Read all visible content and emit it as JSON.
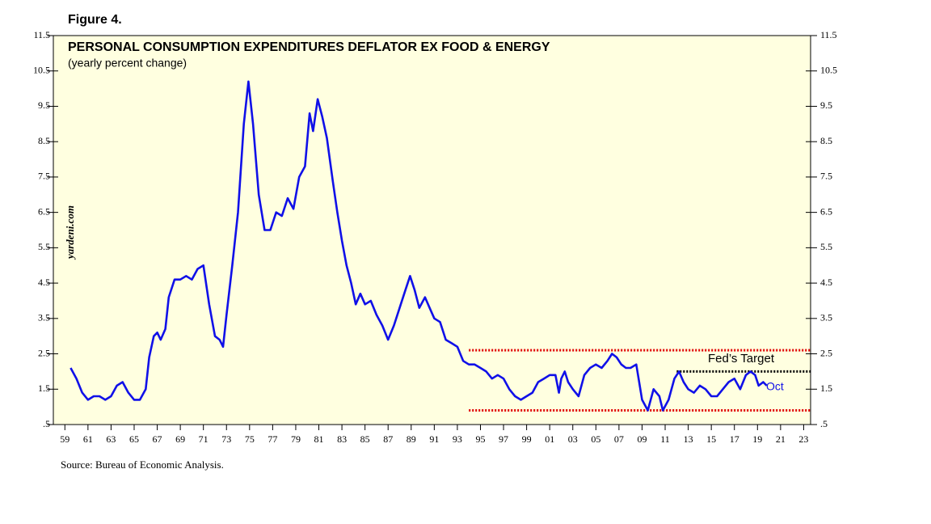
{
  "chart_data": {
    "type": "line",
    "figure_label": "Figure 4.",
    "title": "PERSONAL CONSUMPTION EXPENDITURES DEFLATOR EX FOOD & ENERGY",
    "subtitle": "(yearly percent change)",
    "watermark": "yardeni.com",
    "source": "Source: Bureau of Economic Analysis.",
    "annotations": [
      "Fed’s Target",
      "Oct"
    ],
    "background": "#ffffe0",
    "x": [
      1959.5,
      1960,
      1960.5,
      1961,
      1961.5,
      1962,
      1962.5,
      1963,
      1963.5,
      1964,
      1964.5,
      1965,
      1965.5,
      1966,
      1966.3,
      1966.7,
      1967,
      1967.3,
      1967.7,
      1968,
      1968.5,
      1969,
      1969.5,
      1970,
      1970.5,
      1971,
      1971.5,
      1972,
      1972.4,
      1972.7,
      1973,
      1973.5,
      1974,
      1974.5,
      1974.9,
      1975.3,
      1975.8,
      1976.3,
      1976.8,
      1977.3,
      1977.8,
      1978.3,
      1978.8,
      1979.3,
      1979.8,
      1980.2,
      1980.5,
      1980.9,
      1981.3,
      1981.7,
      1982.2,
      1982.6,
      1983,
      1983.4,
      1983.8,
      1984.2,
      1984.6,
      1985,
      1985.5,
      1986,
      1986.5,
      1987,
      1987.5,
      1988,
      1988.5,
      1988.9,
      1989.3,
      1989.7,
      1990.2,
      1990.6,
      1991,
      1991.5,
      1992,
      1992.5,
      1993,
      1993.5,
      1994,
      1994.5,
      1995,
      1995.5,
      1996,
      1996.5,
      1997,
      1997.5,
      1998,
      1998.5,
      1999,
      1999.5,
      2000,
      2000.5,
      2001,
      2001.5,
      2001.8,
      2002,
      2002.3,
      2002.6,
      2003,
      2003.5,
      2004,
      2004.5,
      2005,
      2005.5,
      2006,
      2006.4,
      2006.8,
      2007.2,
      2007.6,
      2008,
      2008.5,
      2009,
      2009.5,
      2010,
      2010.5,
      2010.8,
      2011.3,
      2011.8,
      2012.2,
      2012.6,
      2013,
      2013.5,
      2014,
      2014.5,
      2015,
      2015.5,
      2016,
      2016.5,
      2017,
      2017.5,
      2018,
      2018.4,
      2018.8,
      2019.1,
      2019.5,
      2019.8
    ],
    "series": [
      {
        "name": "PCE deflator ex food & energy",
        "color": "#1010e8",
        "values": [
          2.1,
          1.8,
          1.4,
          1.2,
          1.3,
          1.3,
          1.2,
          1.3,
          1.6,
          1.7,
          1.4,
          1.2,
          1.2,
          1.5,
          2.4,
          3.0,
          3.1,
          2.9,
          3.2,
          4.1,
          4.6,
          4.6,
          4.7,
          4.6,
          4.9,
          5.0,
          3.9,
          3.0,
          2.9,
          2.7,
          3.6,
          5.0,
          6.5,
          9.0,
          10.2,
          9.0,
          7.0,
          6.0,
          6.0,
          6.5,
          6.4,
          6.9,
          6.6,
          7.5,
          7.8,
          9.3,
          8.8,
          9.7,
          9.2,
          8.6,
          7.4,
          6.5,
          5.7,
          5.0,
          4.5,
          3.9,
          4.2,
          3.9,
          4.0,
          3.6,
          3.3,
          2.9,
          3.3,
          3.8,
          4.3,
          4.7,
          4.3,
          3.8,
          4.1,
          3.8,
          3.5,
          3.4,
          2.9,
          2.8,
          2.7,
          2.3,
          2.2,
          2.2,
          2.1,
          2.0,
          1.8,
          1.9,
          1.8,
          1.5,
          1.3,
          1.2,
          1.3,
          1.4,
          1.7,
          1.8,
          1.9,
          1.9,
          1.4,
          1.8,
          2.0,
          1.7,
          1.5,
          1.3,
          1.9,
          2.1,
          2.2,
          2.1,
          2.3,
          2.5,
          2.4,
          2.2,
          2.1,
          2.1,
          2.2,
          1.2,
          0.9,
          1.5,
          1.3,
          0.9,
          1.2,
          1.8,
          2.0,
          1.7,
          1.5,
          1.4,
          1.6,
          1.5,
          1.3,
          1.3,
          1.5,
          1.7,
          1.8,
          1.5,
          1.9,
          2.0,
          1.9,
          1.6,
          1.7,
          1.6
        ]
      }
    ],
    "reference_lines": [
      {
        "value": 2.6,
        "from": 1994,
        "color": "#e00000"
      },
      {
        "value": 0.9,
        "from": 1994,
        "color": "#e00000"
      },
      {
        "value": 2.0,
        "from": 2012,
        "color": "#000000"
      }
    ],
    "xlim": [
      1958,
      2023.6
    ],
    "xticks": [
      {
        "value": 1959,
        "label": "59"
      },
      {
        "value": 1961,
        "label": "61"
      },
      {
        "value": 1963,
        "label": "63"
      },
      {
        "value": 1965,
        "label": "65"
      },
      {
        "value": 1967,
        "label": "67"
      },
      {
        "value": 1969,
        "label": "69"
      },
      {
        "value": 1971,
        "label": "71"
      },
      {
        "value": 1973,
        "label": "73"
      },
      {
        "value": 1975,
        "label": "75"
      },
      {
        "value": 1977,
        "label": "77"
      },
      {
        "value": 1979,
        "label": "79"
      },
      {
        "value": 1981,
        "label": "81"
      },
      {
        "value": 1983,
        "label": "83"
      },
      {
        "value": 1985,
        "label": "85"
      },
      {
        "value": 1987,
        "label": "87"
      },
      {
        "value": 1989,
        "label": "89"
      },
      {
        "value": 1991,
        "label": "91"
      },
      {
        "value": 1993,
        "label": "93"
      },
      {
        "value": 1995,
        "label": "95"
      },
      {
        "value": 1997,
        "label": "97"
      },
      {
        "value": 1999,
        "label": "99"
      },
      {
        "value": 2001,
        "label": "01"
      },
      {
        "value": 2003,
        "label": "03"
      },
      {
        "value": 2005,
        "label": "05"
      },
      {
        "value": 2007,
        "label": "07"
      },
      {
        "value": 2009,
        "label": "09"
      },
      {
        "value": 2011,
        "label": "11"
      },
      {
        "value": 2013,
        "label": "13"
      },
      {
        "value": 2015,
        "label": "15"
      },
      {
        "value": 2017,
        "label": "17"
      },
      {
        "value": 2019,
        "label": "19"
      },
      {
        "value": 2021,
        "label": "21"
      },
      {
        "value": 2023,
        "label": "23"
      }
    ],
    "ylim": [
      0.5,
      11.5
    ],
    "yticks": [
      {
        "value": 0.5,
        "label": ".5"
      },
      1.5,
      2.5,
      3.5,
      4.5,
      5.5,
      6.5,
      7.5,
      8.5,
      9.5,
      10.5,
      11.5
    ]
  }
}
